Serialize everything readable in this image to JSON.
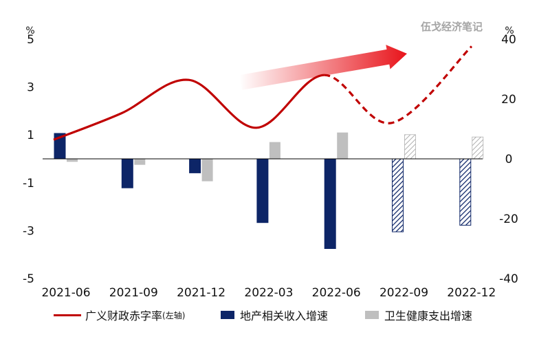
{
  "watermark": "伍戈经济笔记",
  "chart_data": {
    "type": "bar+line",
    "categories": [
      "2021-06",
      "2021-09",
      "2021-12",
      "2022-03",
      "2022-06",
      "2022-09",
      "2022-12"
    ],
    "left_axis": {
      "unit": "%",
      "ylim": [
        -5,
        5
      ],
      "ticks": [
        "5",
        "3",
        "1",
        "-1",
        "-3",
        "-5"
      ]
    },
    "right_axis": {
      "unit": "%",
      "ylim": [
        -40,
        40
      ],
      "ticks": [
        "40",
        "20",
        "0",
        "-20",
        "-40"
      ]
    },
    "series": [
      {
        "name": "广义财政赤字率(左轴)",
        "kind": "line",
        "axis": "left",
        "color": "#c00000",
        "values": [
          0.8,
          1.9,
          3.3,
          1.3,
          3.5,
          1.5,
          4.7
        ],
        "dashed_from_index": 4
      },
      {
        "name": "地产相关收入增速",
        "kind": "bar",
        "axis": "right",
        "color": "#0d2567",
        "values": [
          8.5,
          -9.7,
          -4.7,
          -21.3,
          -30.0,
          -24.4,
          -22.2
        ],
        "hatched_from_index": 5
      },
      {
        "name": "卫生健康支出增速",
        "kind": "bar",
        "axis": "right",
        "color": "#bfbfbf",
        "values": [
          -1.0,
          -2.0,
          -7.5,
          5.6,
          8.8,
          8.1,
          7.3
        ],
        "hatched_from_index": 5
      }
    ],
    "legend": {
      "line_label": "广义财政赤字率",
      "line_label_suffix": "(左轴)",
      "bar1_label": "地产相关收入增速",
      "bar2_label": "卫生健康支出增速",
      "placement": "bottom"
    },
    "trend_arrow": {
      "color": "#e8141b",
      "direction": "up-right"
    }
  }
}
